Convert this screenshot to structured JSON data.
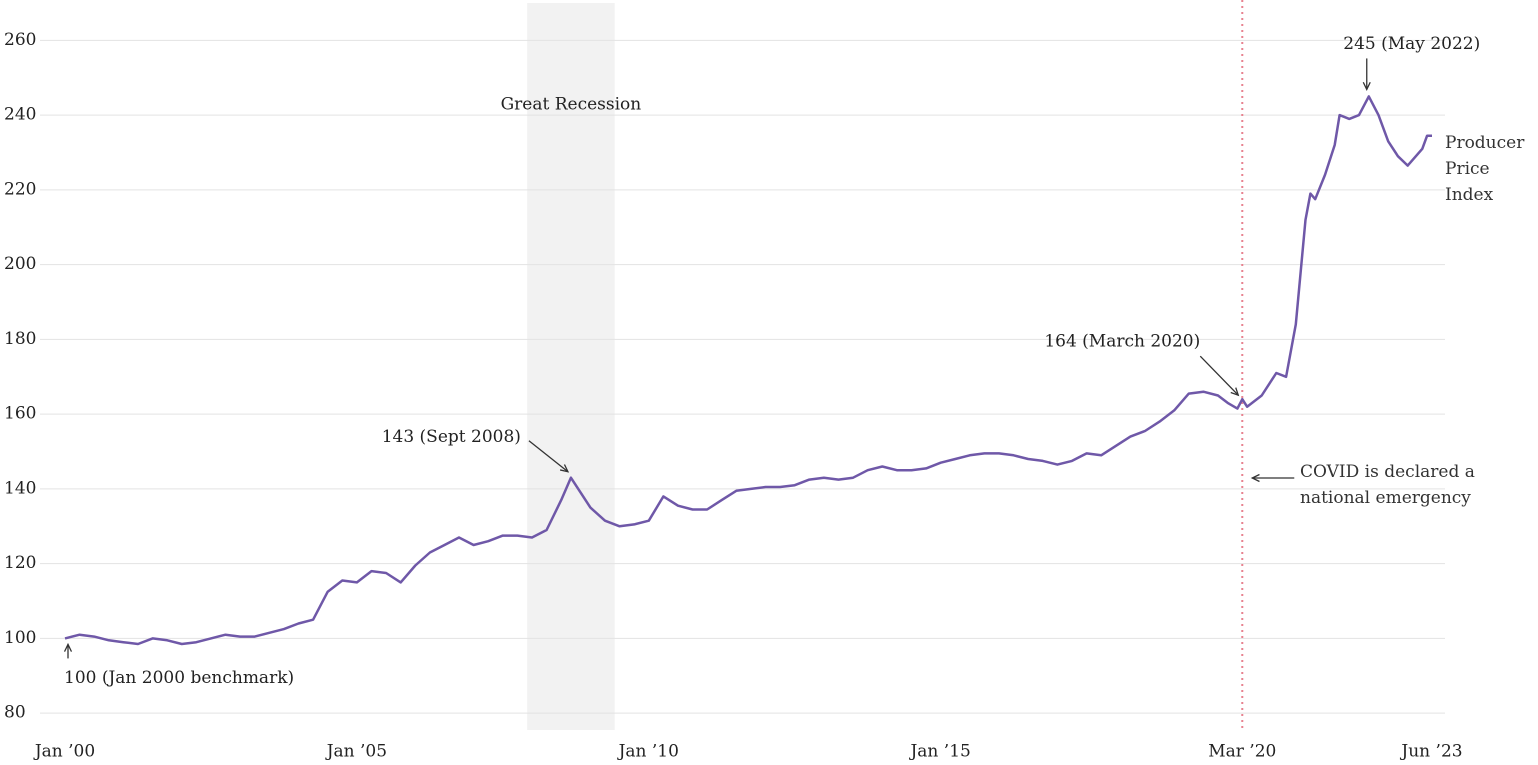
{
  "chart_data": {
    "type": "line",
    "x": [
      "2000-01",
      "2000-04",
      "2000-07",
      "2000-10",
      "2001-01",
      "2001-04",
      "2001-07",
      "2001-10",
      "2002-01",
      "2002-04",
      "2002-07",
      "2002-10",
      "2003-01",
      "2003-04",
      "2003-07",
      "2003-10",
      "2004-01",
      "2004-04",
      "2004-07",
      "2004-10",
      "2005-01",
      "2005-04",
      "2005-07",
      "2005-10",
      "2006-01",
      "2006-04",
      "2006-07",
      "2006-10",
      "2007-01",
      "2007-04",
      "2007-07",
      "2007-10",
      "2008-01",
      "2008-04",
      "2008-07",
      "2008-09",
      "2008-11",
      "2009-01",
      "2009-04",
      "2009-07",
      "2009-10",
      "2010-01",
      "2010-04",
      "2010-07",
      "2010-10",
      "2011-01",
      "2011-04",
      "2011-07",
      "2011-10",
      "2012-01",
      "2012-04",
      "2012-07",
      "2012-10",
      "2013-01",
      "2013-04",
      "2013-07",
      "2013-10",
      "2014-01",
      "2014-04",
      "2014-07",
      "2014-10",
      "2015-01",
      "2015-04",
      "2015-07",
      "2015-10",
      "2016-01",
      "2016-04",
      "2016-07",
      "2016-10",
      "2017-01",
      "2017-04",
      "2017-07",
      "2017-10",
      "2018-01",
      "2018-04",
      "2018-07",
      "2018-10",
      "2019-01",
      "2019-04",
      "2019-07",
      "2019-10",
      "2019-12",
      "2020-02",
      "2020-03",
      "2020-04",
      "2020-07",
      "2020-10",
      "2020-12",
      "2021-02",
      "2021-04",
      "2021-05",
      "2021-06",
      "2021-08",
      "2021-10",
      "2021-11",
      "2022-01",
      "2022-03",
      "2022-05",
      "2022-07",
      "2022-09",
      "2022-11",
      "2023-01",
      "2023-03",
      "2023-04",
      "2023-05",
      "2023-06"
    ],
    "series": [
      {
        "name": "Producer Price Index",
        "color": "#6f58a8",
        "values": [
          100,
          101,
          100.5,
          99.5,
          99,
          98.5,
          100,
          99.5,
          98.5,
          99,
          100,
          101,
          100.5,
          100.5,
          101.5,
          102.5,
          104,
          105,
          112.5,
          115.5,
          115,
          118,
          117.5,
          115,
          119.5,
          123,
          125,
          127,
          125,
          126,
          127.5,
          127.5,
          127,
          129,
          137,
          143,
          139,
          135,
          131.5,
          130,
          130.5,
          131.5,
          138,
          135.5,
          134.5,
          134.5,
          137,
          139.5,
          140,
          140.5,
          140.5,
          141,
          142.5,
          143,
          142.5,
          143,
          145,
          146,
          145,
          145,
          145.5,
          147,
          148,
          149,
          149.5,
          149.5,
          149,
          148,
          147.5,
          146.5,
          147.5,
          149.5,
          149,
          151.5,
          154,
          155.5,
          158,
          161,
          165.5,
          166,
          165,
          163,
          161.5,
          164,
          162,
          165,
          171,
          170,
          184,
          212,
          219,
          217.5,
          224,
          232,
          240,
          239,
          240,
          245,
          240,
          233,
          229,
          226.5,
          229.5,
          231,
          234.5,
          234.5
        ]
      }
    ],
    "xlim": [
      "2000-01",
      "2023-06"
    ],
    "xticks": [
      {
        "value": "2000-01",
        "label": "Jan ’00"
      },
      {
        "value": "2005-01",
        "label": "Jan ’05"
      },
      {
        "value": "2010-01",
        "label": "Jan ’10"
      },
      {
        "value": "2015-01",
        "label": "Jan ’15"
      },
      {
        "value": "2020-03",
        "label": "Mar ’20"
      },
      {
        "value": "2023-06",
        "label": "Jun ’23"
      }
    ],
    "ylim": [
      75.5,
      270
    ],
    "yticks": [
      80,
      100,
      120,
      140,
      160,
      180,
      200,
      220,
      240,
      260
    ],
    "grid": true,
    "annotations": [
      {
        "text": "Great Recession",
        "x": [
          "2007-12",
          "2009-06"
        ]
      },
      {
        "text": "143 (Sept 2008)",
        "x": "2008-09"
      },
      {
        "text": "100 (Jan 2000 benchmark)",
        "x": "2000-01"
      },
      {
        "text": "164 (March 2020)",
        "x": "2020-03"
      },
      {
        "text": "245 (May 2022)",
        "x": "2022-05"
      },
      {
        "text": "COVID is declared a national emergency",
        "x": "2020-03"
      }
    ]
  }
}
